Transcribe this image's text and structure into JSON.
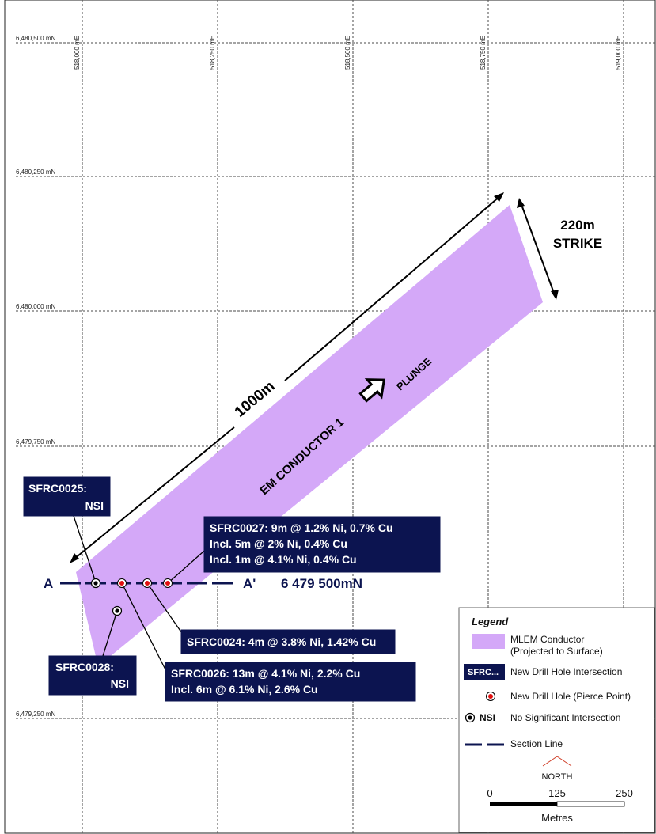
{
  "grid": {
    "northings": [
      "6,480,500 mN",
      "6,480,250 mN",
      "6,480,000 mN",
      "6,479,750 mN",
      "6,479,250 mN"
    ],
    "eastings": [
      "518,000 mE",
      "518,250 mE",
      "518,500 mE",
      "518,750 mE",
      "519,000 mE"
    ]
  },
  "conductor": {
    "label": "EM CONDUCTOR 1",
    "plunge": "PLUNGE"
  },
  "dimensions": {
    "length": "1000m",
    "width_value": "220m",
    "width_label": "STRIKE"
  },
  "section": {
    "start": "A",
    "end": "A'",
    "northing": "6 479 500mN"
  },
  "callouts": {
    "sfrc0025": [
      "SFRC0025:",
      "NSI"
    ],
    "sfrc0027": [
      "SFRC0027: 9m @ 1.2% Ni, 0.7% Cu",
      "Incl. 5m @ 2% Ni, 0.4% Cu",
      "Incl. 1m @ 4.1% Ni, 0.4% Cu"
    ],
    "sfrc0024": [
      "SFRC0024: 4m @ 3.8% Ni, 1.42% Cu"
    ],
    "sfrc0028": [
      "SFRC0028:",
      "NSI"
    ],
    "sfrc0026": [
      "SFRC0026: 13m @ 4.1% Ni, 2.2% Cu",
      "Incl. 6m @ 6.1% Ni, 2.6% Cu"
    ]
  },
  "legend": {
    "title": "Legend",
    "items": {
      "conductor": [
        "MLEM Conductor",
        "(Projected to Surface)"
      ],
      "intersection_symbol": "SFRC...",
      "intersection": "New Drill Hole Intersection",
      "pierce": "New Drill Hole (Pierce Point)",
      "nsi_symbol": "NSI",
      "nsi": "No Significant Intersection",
      "section": "Section Line"
    },
    "north": "NORTH",
    "scale": {
      "ticks": [
        "0",
        "125",
        "250"
      ],
      "unit": "Metres"
    }
  },
  "colors": {
    "conductor": "#d4a8f8",
    "callout": "#0c1450",
    "pierce": "#e01010",
    "north": "#d0402a"
  }
}
